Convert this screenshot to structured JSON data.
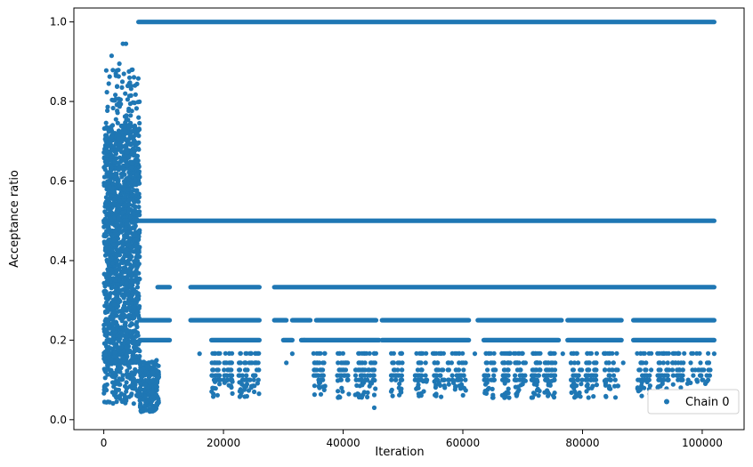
{
  "chart_data": {
    "type": "scatter",
    "xlabel": "Iteration",
    "ylabel": "Acceptance ratio",
    "xlim": [
      -5000,
      107000
    ],
    "ylim": [
      -0.025,
      1.035
    ],
    "xticks": [
      0,
      20000,
      40000,
      60000,
      80000,
      100000
    ],
    "xtick_labels": [
      "0",
      "20000",
      "40000",
      "60000",
      "80000",
      "100000"
    ],
    "yticks": [
      0.0,
      0.2,
      0.4,
      0.6,
      0.8,
      1.0
    ],
    "ytick_labels": [
      "0.0",
      "0.2",
      "0.4",
      "0.6",
      "0.8",
      "1.0"
    ],
    "grid": false,
    "legend": {
      "position": "lower-right",
      "entries": [
        "Chain 0"
      ]
    },
    "color": "#1f77b4",
    "series": [
      {
        "name": "Chain 0",
        "bands": [
          {
            "y": 1.0,
            "x_range": [
              5800,
              102000
            ]
          },
          {
            "y": 0.5,
            "x_range": [
              0,
              102000
            ]
          },
          {
            "y": 0.3333,
            "x_range": [
              9000,
              102000
            ],
            "gaps": [
              [
                11000,
                14500
              ],
              [
                26000,
                28500
              ]
            ]
          },
          {
            "y": 0.25,
            "x_range": [
              6000,
              102000
            ],
            "gaps": [
              [
                11000,
                14500
              ],
              [
                26000,
                28500
              ],
              [
                30500,
                31500
              ],
              [
                34500,
                35500
              ],
              [
                45500,
                46500
              ],
              [
                61000,
                62500
              ],
              [
                76500,
                77500
              ],
              [
                86500,
                88500
              ]
            ]
          },
          {
            "y": 0.2,
            "x_range": [
              6000,
              102000
            ],
            "gaps": [
              [
                11000,
                18000
              ],
              [
                26000,
                30000
              ],
              [
                31500,
                33000
              ],
              [
                46000,
                46500
              ],
              [
                61000,
                63500
              ],
              [
                76000,
                77500
              ],
              [
                86500,
                88500
              ]
            ]
          }
        ],
        "early_phase": {
          "x_range": [
            0,
            6000
          ],
          "y_range": [
            0.03,
            0.94
          ]
        }
      }
    ]
  }
}
